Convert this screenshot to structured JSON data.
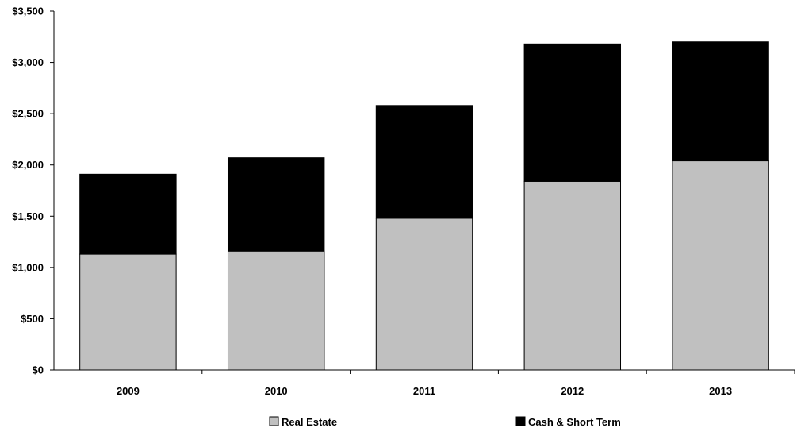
{
  "chart_data": {
    "type": "bar",
    "stacked": true,
    "categories": [
      "2009",
      "2010",
      "2011",
      "2012",
      "2013"
    ],
    "series": [
      {
        "name": "Real Estate",
        "color": "#c0c0c0",
        "values": [
          1130,
          1160,
          1480,
          1840,
          2040
        ]
      },
      {
        "name": "Cash & Short Term",
        "color": "#000000",
        "values": [
          780,
          910,
          1100,
          1340,
          1160
        ]
      }
    ],
    "y_ticks": [
      "$0",
      "$500",
      "$1,000",
      "$1,500",
      "$2,000",
      "$2,500",
      "$3,000",
      "$3,500"
    ],
    "ylim": [
      0,
      3500
    ],
    "xlabel": "",
    "ylabel": "",
    "title": "",
    "grid": false,
    "legend_position": "bottom"
  }
}
